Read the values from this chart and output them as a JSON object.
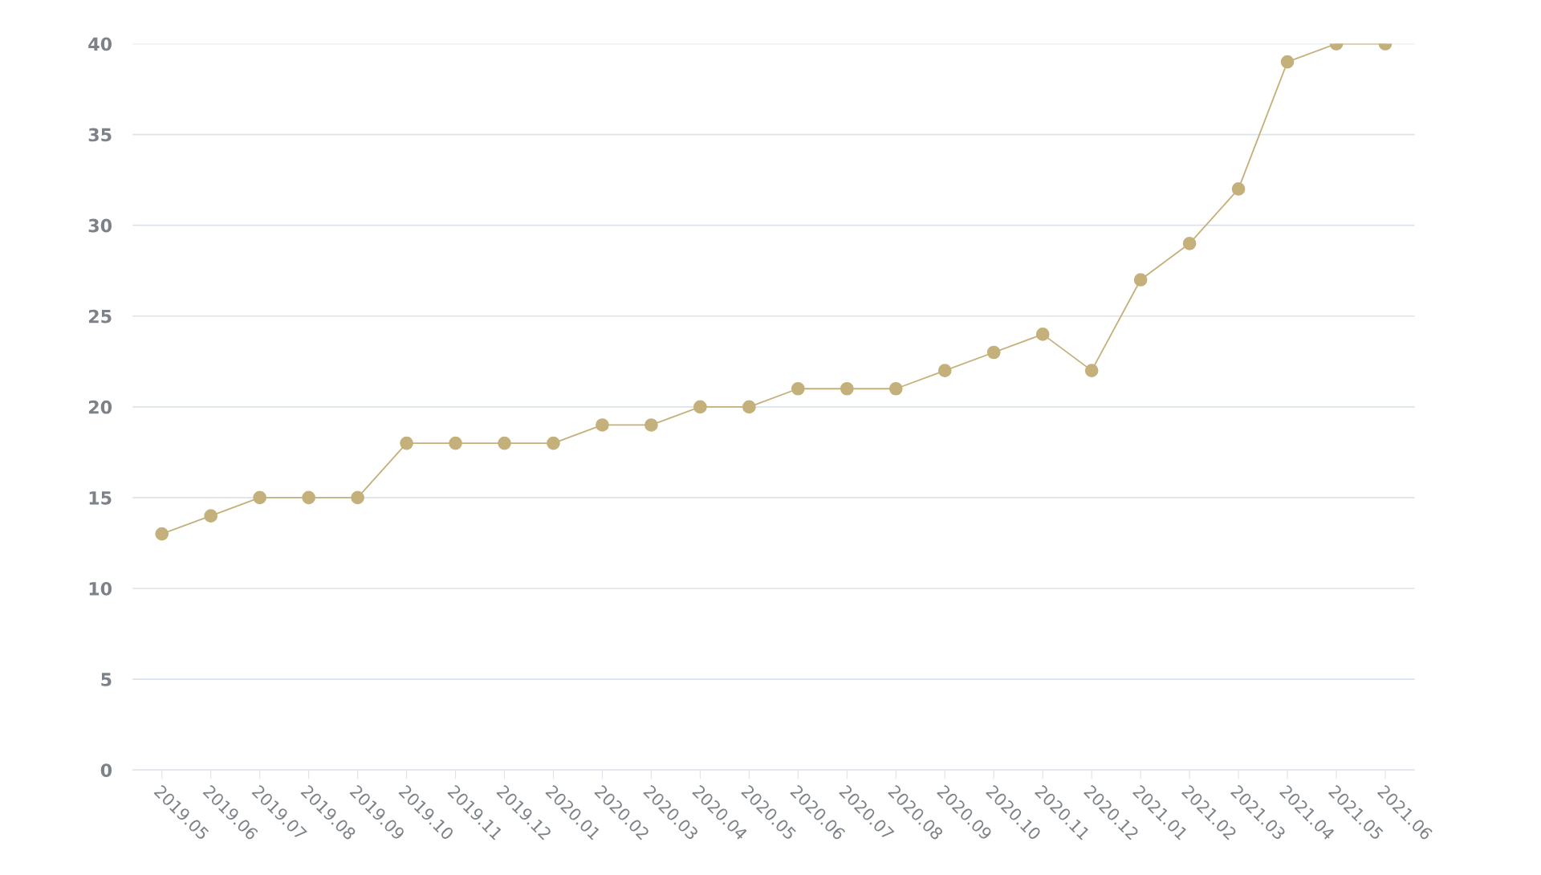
{
  "chart_data": {
    "type": "line",
    "categories": [
      "2019.05",
      "2019.06",
      "2019.07",
      "2019.08",
      "2019.09",
      "2019.10",
      "2019.11",
      "2019.12",
      "2020.01",
      "2020.02",
      "2020.03",
      "2020.04",
      "2020.05",
      "2020.06",
      "2020.07",
      "2020.08",
      "2020.09",
      "2020.10",
      "2020.11",
      "2020.12",
      "2021.01",
      "2021.02",
      "2021.03",
      "2021.04",
      "2021.05",
      "2021.06"
    ],
    "series": [
      {
        "color": "#c4b07a",
        "values": [
          13,
          14,
          15,
          15,
          15,
          18,
          18,
          18,
          18,
          19,
          19,
          20,
          20,
          21,
          21,
          21,
          22,
          23,
          24,
          22,
          27,
          29,
          32,
          39,
          40,
          40
        ]
      }
    ],
    "ylim": [
      0,
      40
    ],
    "yticks": [
      0,
      5,
      10,
      15,
      20,
      25,
      30,
      35,
      40
    ],
    "grid": "y",
    "legend": false,
    "marker": "circle",
    "line_style": "solid"
  }
}
